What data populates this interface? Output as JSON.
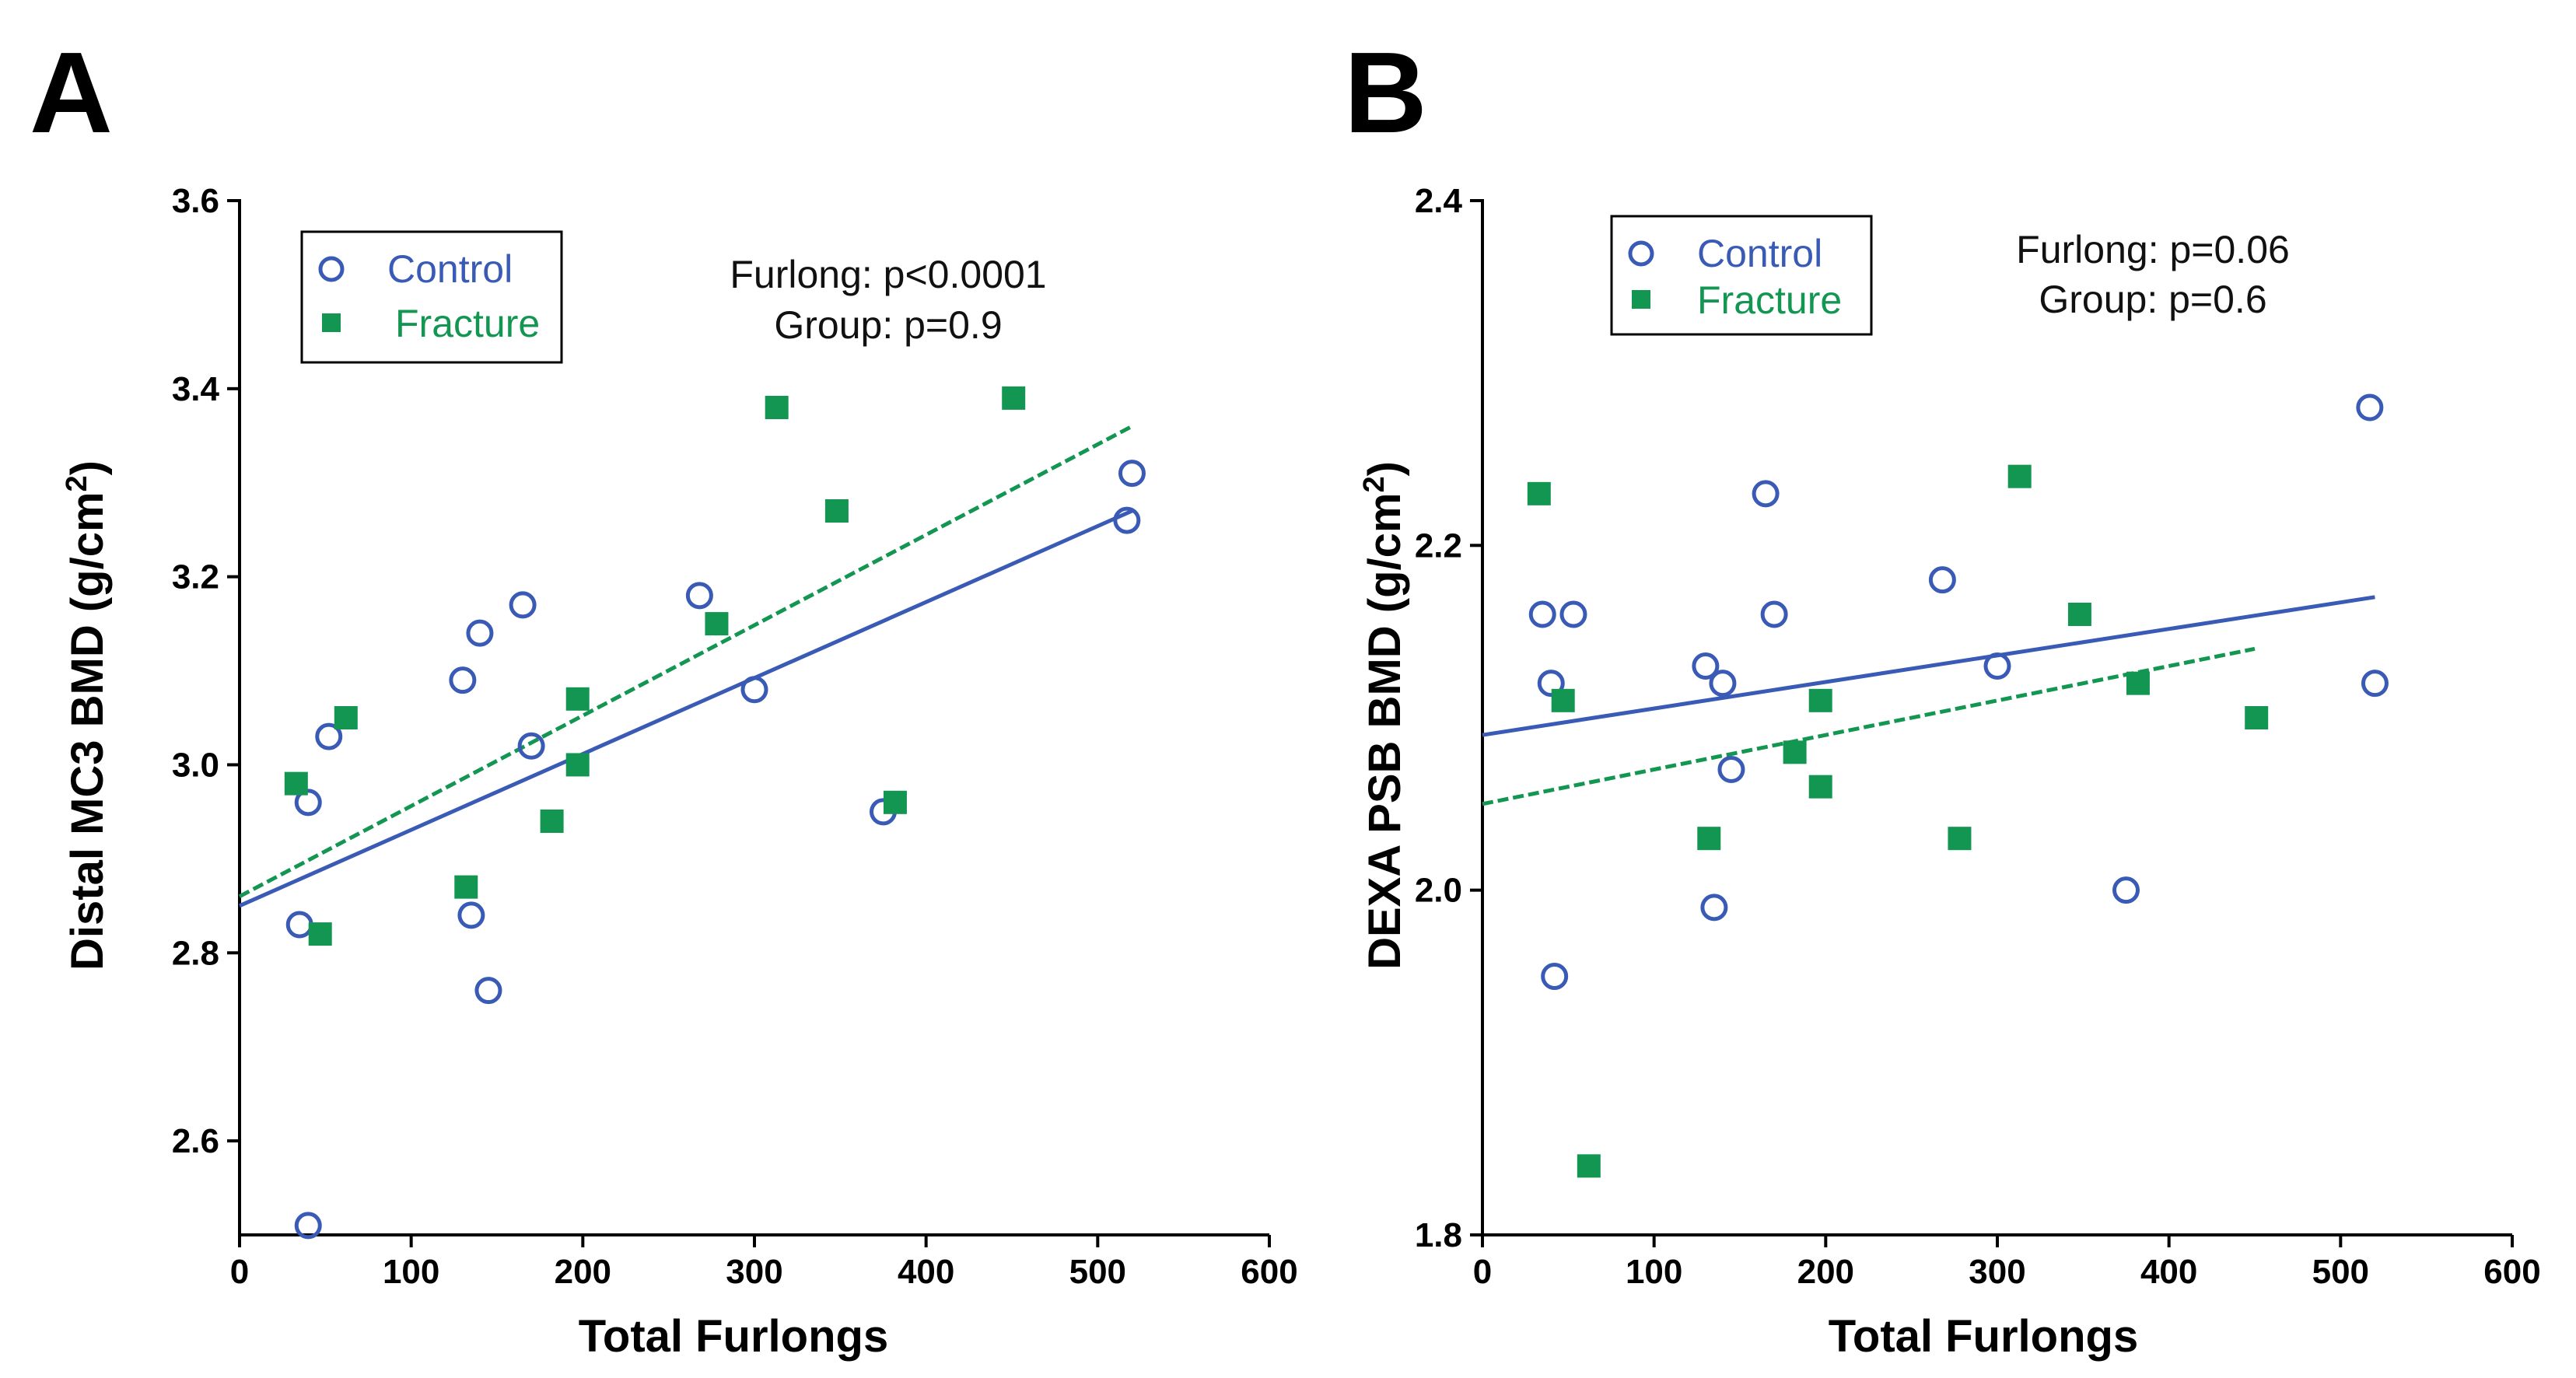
{
  "colors": {
    "control": "#3a5bb5",
    "fracture": "#149653",
    "axis": "#000000"
  },
  "chart_data": [
    {
      "panel": "A",
      "type": "scatter",
      "xlabel": "Total Furlongs",
      "ylabel": "Distal MC3 BMD (g/cm",
      "ylabel_sup": "2",
      "ylabel_close": ")",
      "xlim": [
        0,
        600
      ],
      "ylim": [
        2.5,
        3.6
      ],
      "xticks": [
        0,
        100,
        200,
        300,
        400,
        500,
        600
      ],
      "xtick_labels": [
        "0",
        "100",
        "200",
        "300",
        "400",
        "500",
        "600"
      ],
      "yticks": [
        2.6,
        2.8,
        3.0,
        3.2,
        3.4,
        3.6
      ],
      "ytick_labels": [
        "2.6",
        "2.8",
        "3.0",
        "3.2",
        "3.4",
        "3.6"
      ],
      "legend": [
        "Control",
        "Fracture"
      ],
      "annotations": [
        "Furlong: p<0.0001",
        "Group: p=0.9"
      ],
      "series": [
        {
          "name": "Control",
          "marker": "open-circle",
          "points": [
            [
              40,
              2.96
            ],
            [
              52,
              3.03
            ],
            [
              35,
              2.83
            ],
            [
              40,
              2.51
            ],
            [
              130,
              3.09
            ],
            [
              140,
              3.14
            ],
            [
              135,
              2.84
            ],
            [
              145,
              2.76
            ],
            [
              165,
              3.17
            ],
            [
              170,
              3.02
            ],
            [
              268,
              3.18
            ],
            [
              300,
              3.08
            ],
            [
              375,
              2.95
            ],
            [
              517,
              3.26
            ],
            [
              520,
              3.31
            ]
          ],
          "fit": {
            "x": [
              0,
              520
            ],
            "y": [
              2.85,
              3.27
            ],
            "style": "solid"
          }
        },
        {
          "name": "Fracture",
          "marker": "filled-square",
          "points": [
            [
              33,
              2.98
            ],
            [
              47,
              2.82
            ],
            [
              62,
              3.05
            ],
            [
              132,
              2.87
            ],
            [
              182,
              2.94
            ],
            [
              197,
              3.07
            ],
            [
              197,
              3.0
            ],
            [
              278,
              3.15
            ],
            [
              313,
              3.38
            ],
            [
              348,
              3.27
            ],
            [
              382,
              2.96
            ],
            [
              451,
              3.39
            ]
          ],
          "fit": {
            "x": [
              0,
              520
            ],
            "y": [
              2.86,
              3.36
            ],
            "style": "dashed"
          }
        }
      ]
    },
    {
      "panel": "B",
      "type": "scatter",
      "xlabel": "Total Furlongs",
      "ylabel": "DEXA PSB BMD (g/cm",
      "ylabel_sup": "2",
      "ylabel_close": ")",
      "xlim": [
        0,
        600
      ],
      "ylim": [
        1.8,
        2.4
      ],
      "xticks": [
        0,
        100,
        200,
        300,
        400,
        500,
        600
      ],
      "xtick_labels": [
        "0",
        "100",
        "200",
        "300",
        "400",
        "500",
        "600"
      ],
      "yticks": [
        1.8,
        2.0,
        2.2,
        2.4
      ],
      "ytick_labels": [
        "1.8",
        "2.0",
        "2.2",
        "2.4"
      ],
      "legend": [
        "Control",
        "Fracture"
      ],
      "annotations": [
        "Furlong: p=0.06",
        "Group: p=0.6"
      ],
      "series": [
        {
          "name": "Control",
          "marker": "open-circle",
          "points": [
            [
              35,
              2.16
            ],
            [
              40,
              2.12
            ],
            [
              42,
              1.95
            ],
            [
              53,
              2.16
            ],
            [
              130,
              2.13
            ],
            [
              135,
              1.99
            ],
            [
              140,
              2.12
            ],
            [
              145,
              2.07
            ],
            [
              165,
              2.23
            ],
            [
              170,
              2.16
            ],
            [
              268,
              2.18
            ],
            [
              300,
              2.13
            ],
            [
              375,
              2.0
            ],
            [
              517,
              2.28
            ],
            [
              520,
              2.12
            ]
          ],
          "fit": {
            "x": [
              0,
              520
            ],
            "y": [
              2.09,
              2.17
            ],
            "style": "solid"
          }
        },
        {
          "name": "Fracture",
          "marker": "filled-square",
          "points": [
            [
              33,
              2.23
            ],
            [
              47,
              2.11
            ],
            [
              62,
              1.84
            ],
            [
              132,
              2.03
            ],
            [
              182,
              2.08
            ],
            [
              197,
              2.11
            ],
            [
              197,
              2.06
            ],
            [
              278,
              2.03
            ],
            [
              313,
              2.24
            ],
            [
              348,
              2.16
            ],
            [
              382,
              2.12
            ],
            [
              451,
              2.1
            ]
          ],
          "fit": {
            "x": [
              0,
              450
            ],
            "y": [
              2.05,
              2.14
            ],
            "style": "dashed"
          }
        }
      ]
    }
  ]
}
